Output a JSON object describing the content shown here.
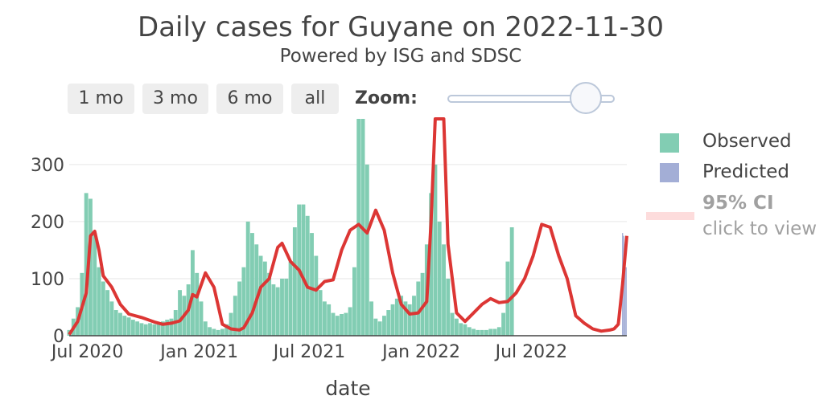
{
  "title": "Daily cases for Guyane on 2022-11-30",
  "subtitle": "Powered by ISG and SDSC",
  "range_buttons": [
    "1 mo",
    "3 mo",
    "6 mo",
    "all"
  ],
  "zoom_label": "Zoom:",
  "zoom_level": 0.8,
  "legend": {
    "observed": "Observed",
    "predicted": "Predicted",
    "ci": "95% CI",
    "ci_hint": "click to view"
  },
  "colors": {
    "observed": "#82cdb3",
    "predicted": "#a3aed6",
    "smoothed": "#dc3634",
    "ci": "#fddcdc",
    "grid": "#e6e6e6"
  },
  "chart_data": {
    "type": "bar",
    "xlabel": "date",
    "ylabel": "",
    "ylim": [
      0,
      380
    ],
    "x_range": [
      "2020-06-01",
      "2022-12-05"
    ],
    "x_ticks": [
      {
        "date": "2020-07-01",
        "label": "Jul 2020"
      },
      {
        "date": "2021-01-01",
        "label": "Jan 2021"
      },
      {
        "date": "2021-07-01",
        "label": "Jul 2021"
      },
      {
        "date": "2022-01-01",
        "label": "Jan 2022"
      },
      {
        "date": "2022-07-01",
        "label": "Jul 2022"
      }
    ],
    "y_ticks": [
      0,
      100,
      200,
      300
    ],
    "grid": true,
    "legend_position": "right",
    "series": [
      {
        "name": "Observed",
        "type": "bar",
        "points": [
          [
            "2020-06-01",
            10
          ],
          [
            "2020-06-08",
            30
          ],
          [
            "2020-06-15",
            50
          ],
          [
            "2020-06-22",
            110
          ],
          [
            "2020-06-29",
            250
          ],
          [
            "2020-07-06",
            240
          ],
          [
            "2020-07-13",
            180
          ],
          [
            "2020-07-20",
            120
          ],
          [
            "2020-07-27",
            95
          ],
          [
            "2020-08-03",
            80
          ],
          [
            "2020-08-10",
            60
          ],
          [
            "2020-08-17",
            45
          ],
          [
            "2020-08-24",
            40
          ],
          [
            "2020-08-31",
            35
          ],
          [
            "2020-09-07",
            32
          ],
          [
            "2020-09-14",
            28
          ],
          [
            "2020-09-21",
            25
          ],
          [
            "2020-09-28",
            22
          ],
          [
            "2020-10-05",
            20
          ],
          [
            "2020-10-12",
            22
          ],
          [
            "2020-10-19",
            20
          ],
          [
            "2020-10-26",
            22
          ],
          [
            "2020-11-02",
            25
          ],
          [
            "2020-11-09",
            28
          ],
          [
            "2020-11-16",
            30
          ],
          [
            "2020-11-23",
            45
          ],
          [
            "2020-11-30",
            80
          ],
          [
            "2020-12-07",
            70
          ],
          [
            "2020-12-14",
            90
          ],
          [
            "2020-12-21",
            150
          ],
          [
            "2020-12-28",
            110
          ],
          [
            "2021-01-04",
            60
          ],
          [
            "2021-01-11",
            25
          ],
          [
            "2021-01-18",
            15
          ],
          [
            "2021-01-25",
            12
          ],
          [
            "2021-02-01",
            10
          ],
          [
            "2021-02-08",
            12
          ],
          [
            "2021-02-15",
            20
          ],
          [
            "2021-02-22",
            40
          ],
          [
            "2021-03-01",
            70
          ],
          [
            "2021-03-08",
            95
          ],
          [
            "2021-03-15",
            120
          ],
          [
            "2021-03-22",
            200
          ],
          [
            "2021-03-29",
            180
          ],
          [
            "2021-04-05",
            160
          ],
          [
            "2021-04-12",
            140
          ],
          [
            "2021-04-19",
            130
          ],
          [
            "2021-04-26",
            110
          ],
          [
            "2021-05-03",
            90
          ],
          [
            "2021-05-10",
            85
          ],
          [
            "2021-05-17",
            100
          ],
          [
            "2021-05-24",
            100
          ],
          [
            "2021-05-31",
            130
          ],
          [
            "2021-06-07",
            190
          ],
          [
            "2021-06-14",
            230
          ],
          [
            "2021-06-21",
            230
          ],
          [
            "2021-06-28",
            210
          ],
          [
            "2021-07-05",
            180
          ],
          [
            "2021-07-12",
            140
          ],
          [
            "2021-07-19",
            80
          ],
          [
            "2021-07-26",
            60
          ],
          [
            "2021-08-02",
            55
          ],
          [
            "2021-08-09",
            40
          ],
          [
            "2021-08-16",
            35
          ],
          [
            "2021-08-23",
            38
          ],
          [
            "2021-08-30",
            40
          ],
          [
            "2021-09-06",
            50
          ],
          [
            "2021-09-13",
            120
          ],
          [
            "2021-09-20",
            380
          ],
          [
            "2021-09-27",
            380
          ],
          [
            "2021-10-04",
            300
          ],
          [
            "2021-10-11",
            60
          ],
          [
            "2021-10-18",
            30
          ],
          [
            "2021-10-25",
            25
          ],
          [
            "2021-11-01",
            35
          ],
          [
            "2021-11-08",
            45
          ],
          [
            "2021-11-15",
            55
          ],
          [
            "2021-11-22",
            65
          ],
          [
            "2021-11-29",
            70
          ],
          [
            "2021-12-06",
            60
          ],
          [
            "2021-12-13",
            55
          ],
          [
            "2021-12-20",
            70
          ],
          [
            "2021-12-27",
            95
          ],
          [
            "2022-01-03",
            110
          ],
          [
            "2022-01-10",
            160
          ],
          [
            "2022-01-17",
            250
          ],
          [
            "2022-01-24",
            300
          ],
          [
            "2022-01-31",
            200
          ],
          [
            "2022-02-07",
            160
          ],
          [
            "2022-02-14",
            100
          ],
          [
            "2022-02-21",
            40
          ],
          [
            "2022-02-28",
            30
          ],
          [
            "2022-03-07",
            22
          ],
          [
            "2022-03-14",
            20
          ],
          [
            "2022-03-21",
            15
          ],
          [
            "2022-03-28",
            12
          ],
          [
            "2022-04-04",
            10
          ],
          [
            "2022-04-11",
            10
          ],
          [
            "2022-04-18",
            10
          ],
          [
            "2022-04-25",
            12
          ],
          [
            "2022-05-02",
            12
          ],
          [
            "2022-05-09",
            15
          ],
          [
            "2022-05-16",
            40
          ],
          [
            "2022-05-23",
            130
          ],
          [
            "2022-05-30",
            190
          ]
        ]
      },
      {
        "name": "Predicted",
        "type": "bar",
        "points": [
          [
            "2022-11-28",
            180
          ],
          [
            "2022-11-30",
            175
          ],
          [
            "2022-12-02",
            140
          ],
          [
            "2022-12-04",
            120
          ]
        ]
      },
      {
        "name": "",
        "type": "line",
        "points": [
          [
            "2020-06-01",
            2
          ],
          [
            "2020-06-15",
            25
          ],
          [
            "2020-06-29",
            75
          ],
          [
            "2020-07-06",
            175
          ],
          [
            "2020-07-13",
            183
          ],
          [
            "2020-07-20",
            150
          ],
          [
            "2020-07-27",
            105
          ],
          [
            "2020-08-10",
            85
          ],
          [
            "2020-08-24",
            55
          ],
          [
            "2020-09-07",
            38
          ],
          [
            "2020-09-28",
            32
          ],
          [
            "2020-10-19",
            24
          ],
          [
            "2020-11-02",
            20
          ],
          [
            "2020-11-16",
            22
          ],
          [
            "2020-11-30",
            26
          ],
          [
            "2020-12-14",
            45
          ],
          [
            "2020-12-21",
            72
          ],
          [
            "2020-12-28",
            68
          ],
          [
            "2021-01-11",
            110
          ],
          [
            "2021-01-25",
            85
          ],
          [
            "2021-02-08",
            20
          ],
          [
            "2021-02-22",
            12
          ],
          [
            "2021-03-08",
            10
          ],
          [
            "2021-03-15",
            14
          ],
          [
            "2021-03-29",
            40
          ],
          [
            "2021-04-12",
            85
          ],
          [
            "2021-04-26",
            100
          ],
          [
            "2021-05-10",
            155
          ],
          [
            "2021-05-17",
            162
          ],
          [
            "2021-05-31",
            130
          ],
          [
            "2021-06-14",
            115
          ],
          [
            "2021-06-28",
            85
          ],
          [
            "2021-07-12",
            80
          ],
          [
            "2021-07-26",
            95
          ],
          [
            "2021-08-09",
            98
          ],
          [
            "2021-08-23",
            150
          ],
          [
            "2021-09-06",
            185
          ],
          [
            "2021-09-20",
            195
          ],
          [
            "2021-10-04",
            180
          ],
          [
            "2021-10-18",
            220
          ],
          [
            "2021-11-01",
            185
          ],
          [
            "2021-11-15",
            110
          ],
          [
            "2021-11-29",
            55
          ],
          [
            "2021-12-13",
            38
          ],
          [
            "2021-12-27",
            40
          ],
          [
            "2022-01-10",
            60
          ],
          [
            "2022-01-17",
            200
          ],
          [
            "2022-01-24",
            380
          ],
          [
            "2022-02-07",
            380
          ],
          [
            "2022-02-14",
            160
          ],
          [
            "2022-02-28",
            40
          ],
          [
            "2022-03-14",
            25
          ],
          [
            "2022-03-28",
            40
          ],
          [
            "2022-04-11",
            55
          ],
          [
            "2022-04-25",
            65
          ],
          [
            "2022-05-09",
            58
          ],
          [
            "2022-05-23",
            60
          ],
          [
            "2022-06-06",
            75
          ],
          [
            "2022-06-20",
            100
          ],
          [
            "2022-07-04",
            140
          ],
          [
            "2022-07-18",
            195
          ],
          [
            "2022-08-01",
            190
          ],
          [
            "2022-08-15",
            140
          ],
          [
            "2022-08-29",
            100
          ],
          [
            "2022-09-12",
            35
          ],
          [
            "2022-09-26",
            22
          ],
          [
            "2022-10-10",
            12
          ],
          [
            "2022-10-24",
            8
          ],
          [
            "2022-11-07",
            10
          ],
          [
            "2022-11-14",
            12
          ],
          [
            "2022-11-21",
            20
          ],
          [
            "2022-11-28",
            90
          ],
          [
            "2022-12-05",
            175
          ]
        ]
      }
    ]
  }
}
